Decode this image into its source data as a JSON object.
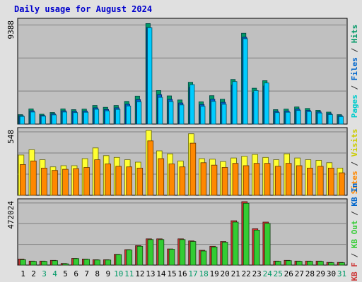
{
  "colors": {
    "background": "#e0e0e0",
    "panel": "#c0c0c0",
    "grid": "#808080",
    "title": "#0000cc",
    "pages": "#00ccff",
    "pages_dark": "#008080",
    "hits": "#009966",
    "files": "#0066cc",
    "visits": "#ffff33",
    "sites": "#ff8800",
    "kb_in": "#33cc33",
    "kb_out": "#cc3333",
    "weekend": "#009966",
    "weekday": "#000000"
  },
  "chart_data": {
    "type": "bar",
    "title": "Daily usage for August 2024",
    "categories": [
      "1",
      "2",
      "3",
      "4",
      "5",
      "6",
      "7",
      "8",
      "9",
      "10",
      "11",
      "12",
      "13",
      "14",
      "15",
      "16",
      "17",
      "18",
      "19",
      "20",
      "21",
      "22",
      "23",
      "24",
      "25",
      "26",
      "27",
      "28",
      "29",
      "30",
      "31"
    ],
    "weekend_days": [
      "3",
      "4",
      "10",
      "11",
      "17",
      "18",
      "24",
      "25",
      "31"
    ],
    "panels": [
      {
        "name": "hits-files-pages",
        "ymax_label": "9388",
        "ylim": [
          0,
          9388
        ],
        "side_labels": [
          {
            "text": "Pages",
            "color": "#00cccc"
          },
          {
            "text": " / ",
            "color": "#333333"
          },
          {
            "text": "Files",
            "color": "#0066cc"
          },
          {
            "text": " / ",
            "color": "#333333"
          },
          {
            "text": "Hits",
            "color": "#009966"
          }
        ],
        "series": [
          {
            "name": "Hits",
            "values": [
              860,
              1380,
              900,
              1060,
              1380,
              1320,
              1360,
              1700,
              1530,
              1700,
              2070,
              2550,
              9170,
              3060,
              2570,
              2200,
              3810,
              2030,
              2590,
              2270,
              4070,
              8280,
              3270,
              3960,
              1320,
              1360,
              1560,
              1430,
              1260,
              1090,
              860
            ]
          },
          {
            "name": "Files",
            "values": [
              760,
              1210,
              790,
              930,
              1210,
              1160,
              1190,
              1480,
              1330,
              1480,
              1810,
              2230,
              8800,
              2680,
              2250,
              1920,
              3340,
              1780,
              2270,
              1990,
              3560,
              7920,
              2860,
              3470,
              1160,
              1190,
              1370,
              1250,
              1110,
              960,
              760
            ]
          },
          {
            "name": "Pages",
            "values": [
              700,
              1100,
              720,
              840,
              1100,
              1050,
              1080,
              1350,
              1210,
              1340,
              1650,
              2030,
              8790,
              2440,
              2050,
              1750,
              3600,
              1620,
              2070,
              1810,
              3880,
              7790,
              3060,
              3750,
              1050,
              1080,
              1240,
              1140,
              1010,
              870,
              690
            ]
          }
        ]
      },
      {
        "name": "visits-sites",
        "ymax_label": "548",
        "ylim": [
          0,
          548
        ],
        "side_labels": [
          {
            "text": "Sites",
            "color": "#ff8800"
          },
          {
            "text": " / ",
            "color": "#333333"
          },
          {
            "text": "Visits",
            "color": "#cccc00"
          }
        ],
        "series": [
          {
            "name": "Visits",
            "values": [
              340,
              385,
              300,
              240,
              250,
              250,
              310,
              400,
              335,
              320,
              300,
              280,
              548,
              375,
              350,
              290,
              520,
              310,
              305,
              285,
              315,
              330,
              345,
              320,
              300,
              350,
              315,
              300,
              295,
              275,
              230
            ]
          },
          {
            "name": "Sites",
            "values": [
              260,
              290,
              230,
              210,
              220,
              225,
              235,
              300,
              265,
              245,
              240,
              230,
              460,
              310,
              265,
              240,
              440,
              275,
              255,
              235,
              270,
              250,
              270,
              270,
              245,
              270,
              250,
              230,
              245,
              230,
              190
            ]
          }
        ]
      },
      {
        "name": "kb-in-out",
        "ymax_label": "472024",
        "ylim": [
          0,
          472024
        ],
        "side_labels": [
          {
            "text": "KB F",
            "color": "#cc3333"
          },
          {
            "text": " / ",
            "color": "#333333"
          },
          {
            "text": "KB Out",
            "color": "#33cc33"
          },
          {
            "text": " / ",
            "color": "#333333"
          },
          {
            "text": "KB In",
            "color": "#0066cc"
          }
        ],
        "series": [
          {
            "name": "KB F",
            "values": [
              45000,
              30000,
              30000,
              35000,
              12000,
              50000,
              45000,
              40000,
              40000,
              80000,
              115000,
              145000,
              195000,
              195000,
              120000,
              195000,
              180000,
              110000,
              140000,
              175000,
              330000,
              472024,
              270000,
              320000,
              30000,
              35000,
              30000,
              30000,
              30000,
              20000,
              20000
            ]
          },
          {
            "name": "KB Out",
            "values": [
              40000,
              28000,
              28000,
              33000,
              10000,
              48000,
              43000,
              38000,
              38000,
              78000,
              112000,
              140000,
              190000,
              190000,
              118000,
              190000,
              175000,
              105000,
              135000,
              170000,
              320000,
              460000,
              260000,
              310000,
              28000,
              33000,
              28000,
              28000,
              28000,
              18000,
              18000
            ]
          }
        ]
      }
    ]
  }
}
